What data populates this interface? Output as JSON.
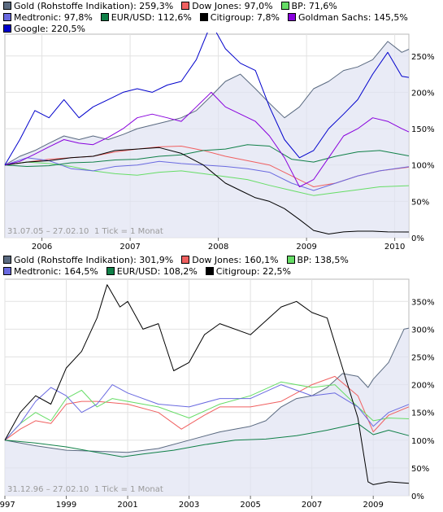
{
  "chart_data": [
    {
      "type": "line",
      "range_label": "31.07.05 – 27.02.10",
      "tick_label": "1 Tick = 1 Monat",
      "x_ticks": [
        "2006",
        "2007",
        "2008",
        "2009",
        "2010"
      ],
      "x_range": [
        2005.58,
        2010.16
      ],
      "y_ticks": [
        "0%",
        "50%",
        "100%",
        "150%",
        "200%",
        "250%"
      ],
      "ylim": [
        0,
        280
      ],
      "legend_placement": "top",
      "series": [
        {
          "name": "Gold (Rohstoffe Indikation): 259,3%",
          "color": "#5a6a80",
          "area": true,
          "x": [
            2005.58,
            2005.75,
            2005.92,
            2006.08,
            2006.25,
            2006.42,
            2006.58,
            2006.75,
            2006.92,
            2007.08,
            2007.25,
            2007.42,
            2007.58,
            2007.75,
            2007.92,
            2008.08,
            2008.25,
            2008.42,
            2008.58,
            2008.75,
            2008.92,
            2009.08,
            2009.25,
            2009.42,
            2009.58,
            2009.75,
            2009.92,
            2010.08,
            2010.16
          ],
          "y": [
            100,
            112,
            120,
            130,
            140,
            135,
            140,
            135,
            142,
            150,
            155,
            160,
            165,
            175,
            195,
            215,
            225,
            205,
            185,
            165,
            180,
            205,
            215,
            230,
            235,
            245,
            270,
            255,
            259.3
          ]
        },
        {
          "name": "Dow Jones: 97,0%",
          "color": "#f06060",
          "x": [
            2005.58,
            2005.83,
            2006.08,
            2006.33,
            2006.58,
            2006.83,
            2007.08,
            2007.33,
            2007.58,
            2007.83,
            2008.08,
            2008.33,
            2008.58,
            2008.83,
            2009.08,
            2009.33,
            2009.58,
            2009.83,
            2010.16
          ],
          "y": [
            100,
            104,
            108,
            110,
            112,
            118,
            122,
            125,
            126,
            120,
            112,
            106,
            100,
            85,
            70,
            75,
            85,
            92,
            97
          ]
        },
        {
          "name": "BP: 71,6%",
          "color": "#66dd66",
          "x": [
            2005.58,
            2005.83,
            2006.08,
            2006.33,
            2006.58,
            2006.83,
            2007.08,
            2007.33,
            2007.58,
            2007.83,
            2008.08,
            2008.33,
            2008.58,
            2008.83,
            2009.08,
            2009.33,
            2009.58,
            2009.83,
            2010.16
          ],
          "y": [
            100,
            104,
            102,
            98,
            92,
            88,
            86,
            90,
            92,
            88,
            84,
            80,
            72,
            65,
            58,
            62,
            66,
            70,
            71.6
          ]
        },
        {
          "name": "Medtronic: 97,8%",
          "color": "#6a6ae0",
          "x": [
            2005.58,
            2005.83,
            2006.08,
            2006.33,
            2006.58,
            2006.83,
            2007.08,
            2007.33,
            2007.58,
            2007.83,
            2008.08,
            2008.33,
            2008.58,
            2008.83,
            2009.08,
            2009.33,
            2009.58,
            2009.83,
            2010.16
          ],
          "y": [
            100,
            110,
            106,
            95,
            92,
            98,
            100,
            105,
            102,
            100,
            98,
            95,
            90,
            75,
            65,
            75,
            85,
            92,
            97.8
          ]
        },
        {
          "name": "EUR/USD: 112,6%",
          "color": "#108048",
          "x": [
            2005.58,
            2005.83,
            2006.08,
            2006.33,
            2006.58,
            2006.83,
            2007.08,
            2007.33,
            2007.58,
            2007.83,
            2008.08,
            2008.33,
            2008.58,
            2008.83,
            2009.08,
            2009.33,
            2009.58,
            2009.83,
            2010.16
          ],
          "y": [
            100,
            98,
            99,
            103,
            104,
            107,
            108,
            112,
            114,
            120,
            122,
            128,
            126,
            108,
            104,
            112,
            118,
            120,
            112.6
          ]
        },
        {
          "name": "Citigroup: 7,8%",
          "color": "#000000",
          "x": [
            2005.58,
            2005.83,
            2006.08,
            2006.33,
            2006.58,
            2006.83,
            2007.08,
            2007.33,
            2007.58,
            2007.83,
            2008.08,
            2008.25,
            2008.42,
            2008.58,
            2008.75,
            2008.92,
            2009.08,
            2009.25,
            2009.42,
            2009.58,
            2009.75,
            2009.92,
            2010.16
          ],
          "y": [
            100,
            104,
            106,
            110,
            112,
            120,
            122,
            124,
            116,
            100,
            75,
            65,
            55,
            50,
            40,
            25,
            10,
            5,
            8,
            9,
            9,
            8,
            7.8
          ]
        },
        {
          "name": "Goldman Sachs: 145,5%",
          "color": "#8800dd",
          "x": [
            2005.58,
            2005.75,
            2005.92,
            2006.08,
            2006.25,
            2006.42,
            2006.58,
            2006.75,
            2006.92,
            2007.08,
            2007.25,
            2007.42,
            2007.58,
            2007.75,
            2007.92,
            2008.08,
            2008.25,
            2008.42,
            2008.58,
            2008.75,
            2008.92,
            2009.08,
            2009.25,
            2009.42,
            2009.58,
            2009.75,
            2009.92,
            2010.08,
            2010.16
          ],
          "y": [
            100,
            105,
            115,
            125,
            135,
            130,
            128,
            138,
            150,
            165,
            170,
            165,
            160,
            180,
            200,
            180,
            170,
            160,
            140,
            110,
            70,
            80,
            110,
            140,
            150,
            165,
            160,
            150,
            145.5
          ]
        },
        {
          "name": "Google: 220,5%",
          "color": "#0000cc",
          "x": [
            2005.58,
            2005.75,
            2005.92,
            2006.08,
            2006.25,
            2006.42,
            2006.58,
            2006.75,
            2006.92,
            2007.08,
            2007.25,
            2007.42,
            2007.58,
            2007.75,
            2007.92,
            2008.08,
            2008.25,
            2008.42,
            2008.58,
            2008.75,
            2008.92,
            2009.08,
            2009.25,
            2009.42,
            2009.58,
            2009.75,
            2009.92,
            2010.08,
            2010.16
          ],
          "y": [
            100,
            135,
            175,
            165,
            190,
            165,
            180,
            190,
            200,
            205,
            200,
            210,
            215,
            245,
            295,
            260,
            240,
            230,
            180,
            135,
            110,
            120,
            150,
            170,
            190,
            225,
            255,
            222,
            220.5
          ]
        }
      ]
    },
    {
      "type": "line",
      "range_label": "31.12.96 – 27.02.10",
      "tick_label": "1 Tick = 1 Monat",
      "x_ticks": [
        "1997",
        "1999",
        "2001",
        "2003",
        "2005",
        "2007",
        "2009"
      ],
      "x_range": [
        1997.0,
        2010.16
      ],
      "y_ticks": [
        "0%",
        "50%",
        "100%",
        "150%",
        "200%",
        "250%",
        "300%",
        "350%"
      ],
      "ylim": [
        0,
        390
      ],
      "legend_placement": "top",
      "series": [
        {
          "name": "Gold (Rohstoffe Indikation): 301,9%",
          "color": "#5a6a80",
          "area": true,
          "x": [
            1997.0,
            1997.5,
            1998.0,
            1999.0,
            2000.0,
            2001.0,
            2002.0,
            2003.0,
            2004.0,
            2005.0,
            2005.5,
            2006.0,
            2006.5,
            2007.0,
            2007.5,
            2008.0,
            2008.5,
            2008.83,
            2009.0,
            2009.5,
            2010.0,
            2010.16
          ],
          "y": [
            100,
            95,
            90,
            82,
            80,
            78,
            85,
            100,
            115,
            125,
            135,
            160,
            175,
            180,
            195,
            220,
            215,
            195,
            210,
            240,
            300,
            301.9
          ]
        },
        {
          "name": "Dow Jones: 160,1%",
          "color": "#f06060",
          "x": [
            1997.0,
            1997.5,
            1998.0,
            1998.5,
            1999.0,
            1999.5,
            2000.0,
            2001.0,
            2002.0,
            2002.75,
            2003.5,
            2004.0,
            2005.0,
            2006.0,
            2007.0,
            2007.75,
            2008.5,
            2009.0,
            2009.5,
            2010.16
          ],
          "y": [
            100,
            120,
            135,
            130,
            165,
            170,
            170,
            165,
            150,
            120,
            145,
            160,
            160,
            170,
            200,
            215,
            180,
            115,
            145,
            160.1
          ]
        },
        {
          "name": "BP: 138,5%",
          "color": "#66dd66",
          "x": [
            1997.0,
            1997.5,
            1998.0,
            1998.5,
            1999.0,
            1999.5,
            2000.0,
            2000.5,
            2001.0,
            2002.0,
            2003.0,
            2004.0,
            2005.0,
            2006.0,
            2007.0,
            2007.75,
            2008.5,
            2009.0,
            2009.5,
            2010.16
          ],
          "y": [
            100,
            130,
            150,
            135,
            175,
            190,
            160,
            175,
            170,
            160,
            140,
            165,
            180,
            205,
            195,
            200,
            160,
            135,
            140,
            138.5
          ]
        },
        {
          "name": "Medtronic: 164,5%",
          "color": "#6a6ae0",
          "x": [
            1997.0,
            1997.5,
            1998.0,
            1998.5,
            1999.0,
            1999.5,
            2000.0,
            2000.5,
            2001.0,
            2002.0,
            2003.0,
            2004.0,
            2005.0,
            2006.0,
            2007.0,
            2007.75,
            2008.5,
            2009.0,
            2009.5,
            2010.16
          ],
          "y": [
            100,
            130,
            170,
            195,
            180,
            150,
            165,
            200,
            185,
            165,
            160,
            175,
            175,
            200,
            180,
            185,
            160,
            125,
            150,
            164.5
          ]
        },
        {
          "name": "EUR/USD: 108,2%",
          "color": "#108048",
          "x": [
            1997.0,
            1998.0,
            1999.0,
            2000.0,
            2000.83,
            2001.5,
            2002.5,
            2003.5,
            2004.5,
            2005.5,
            2006.5,
            2007.5,
            2008.5,
            2009.0,
            2009.5,
            2010.16
          ],
          "y": [
            100,
            95,
            88,
            78,
            70,
            75,
            82,
            92,
            100,
            102,
            108,
            118,
            130,
            110,
            118,
            108.2
          ]
        },
        {
          "name": "Citigroup: 22,5%",
          "color": "#000000",
          "x": [
            1997.0,
            1997.5,
            1998.0,
            1998.5,
            1999.0,
            1999.5,
            2000.0,
            2000.33,
            2000.75,
            2001.0,
            2001.5,
            2002.0,
            2002.5,
            2003.0,
            2003.5,
            2004.0,
            2005.0,
            2006.0,
            2006.5,
            2007.0,
            2007.5,
            2008.0,
            2008.5,
            2008.83,
            2009.0,
            2009.5,
            2010.16
          ],
          "y": [
            100,
            150,
            180,
            165,
            230,
            260,
            320,
            380,
            340,
            350,
            300,
            310,
            225,
            240,
            290,
            310,
            290,
            340,
            350,
            330,
            320,
            230,
            140,
            25,
            20,
            25,
            22.5
          ]
        }
      ]
    }
  ]
}
